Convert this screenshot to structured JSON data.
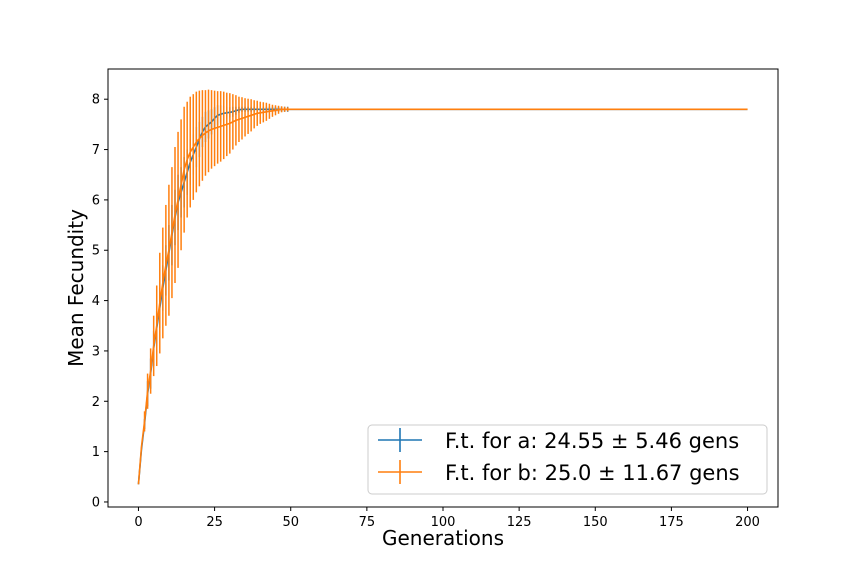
{
  "chart_data": {
    "type": "line",
    "title": "",
    "xlabel": "Generations",
    "ylabel": "Mean Fecundity",
    "xlim": [
      -10,
      210
    ],
    "ylim": [
      -0.1,
      8.6
    ],
    "xticks": [
      0,
      25,
      50,
      75,
      100,
      125,
      150,
      175,
      200
    ],
    "yticks": [
      0,
      1,
      2,
      3,
      4,
      5,
      6,
      7,
      8
    ],
    "legend_position": "bottom-right",
    "grid": false,
    "series": [
      {
        "name": "F.t. for a: 24.55 ± 5.46 gens",
        "color": "#1f77b4",
        "x": [
          0,
          1,
          2,
          3,
          4,
          5,
          6,
          7,
          8,
          9,
          10,
          11,
          12,
          13,
          14,
          15,
          16,
          17,
          18,
          19,
          20,
          21,
          22,
          23,
          24,
          25,
          26,
          27,
          28,
          29,
          30,
          31,
          32,
          33,
          34,
          35,
          36,
          37,
          38,
          39,
          40,
          41,
          42,
          43,
          44,
          45,
          46,
          47,
          48,
          49,
          50,
          200
        ],
        "y": [
          0.35,
          1.05,
          1.55,
          2.15,
          2.55,
          3.05,
          3.45,
          3.85,
          4.25,
          4.6,
          4.95,
          5.3,
          5.65,
          5.95,
          6.15,
          6.35,
          6.55,
          6.75,
          6.9,
          7.05,
          7.2,
          7.35,
          7.45,
          7.5,
          7.55,
          7.62,
          7.68,
          7.7,
          7.72,
          7.73,
          7.74,
          7.75,
          7.77,
          7.79,
          7.8,
          7.8,
          7.8,
          7.8,
          7.8,
          7.8,
          7.8,
          7.8,
          7.8,
          7.8,
          7.8,
          7.8,
          7.8,
          7.8,
          7.8,
          7.8,
          7.8,
          7.8
        ],
        "err": [
          0,
          0,
          0.1,
          0.25,
          0.3,
          0.35,
          0.35,
          0.4,
          0.45,
          0.5,
          0.55,
          0.6,
          0.55,
          0.55,
          0.5,
          0.5,
          0.45,
          0.45,
          0.4,
          0.4,
          0.35,
          0.3,
          0.3,
          0.28,
          0.25,
          0.22,
          0.2,
          0.18,
          0.15,
          0.12,
          0.1,
          0.1,
          0.08,
          0.06,
          0.05,
          0.05,
          0.05,
          0.05,
          0.05,
          0.05,
          0.05,
          0.05,
          0.05,
          0.05,
          0.05,
          0.05,
          0.05,
          0.05,
          0.05,
          0.05,
          0,
          0
        ]
      },
      {
        "name": "F.t. for b: 25.0 ± 11.67 gens",
        "color": "#ff7f0e",
        "x": [
          0,
          1,
          2,
          3,
          4,
          5,
          6,
          7,
          8,
          9,
          10,
          11,
          12,
          13,
          14,
          15,
          16,
          17,
          18,
          19,
          20,
          21,
          22,
          23,
          24,
          25,
          26,
          27,
          28,
          29,
          30,
          31,
          32,
          33,
          34,
          35,
          36,
          37,
          38,
          39,
          40,
          41,
          42,
          43,
          44,
          45,
          46,
          47,
          48,
          49,
          50,
          200
        ],
        "y": [
          0.35,
          1.1,
          1.6,
          2.2,
          2.6,
          3.1,
          3.5,
          3.95,
          4.35,
          4.7,
          5.0,
          5.35,
          5.7,
          6.0,
          6.3,
          6.6,
          6.8,
          6.95,
          7.05,
          7.15,
          7.22,
          7.28,
          7.33,
          7.37,
          7.4,
          7.42,
          7.44,
          7.46,
          7.48,
          7.5,
          7.52,
          7.55,
          7.58,
          7.6,
          7.62,
          7.64,
          7.66,
          7.68,
          7.7,
          7.72,
          7.73,
          7.74,
          7.75,
          7.76,
          7.77,
          7.78,
          7.79,
          7.8,
          7.8,
          7.8,
          7.8,
          7.8
        ],
        "err": [
          0,
          0,
          0.2,
          0.35,
          0.45,
          0.6,
          0.8,
          1.0,
          1.1,
          1.2,
          1.3,
          1.3,
          1.35,
          1.35,
          1.3,
          1.25,
          1.15,
          1.1,
          1.05,
          1.0,
          0.95,
          0.9,
          0.85,
          0.82,
          0.78,
          0.75,
          0.72,
          0.7,
          0.67,
          0.63,
          0.6,
          0.55,
          0.5,
          0.45,
          0.42,
          0.38,
          0.35,
          0.32,
          0.28,
          0.25,
          0.22,
          0.2,
          0.18,
          0.15,
          0.12,
          0.1,
          0.08,
          0.06,
          0.05,
          0.04,
          0,
          0
        ]
      }
    ]
  }
}
